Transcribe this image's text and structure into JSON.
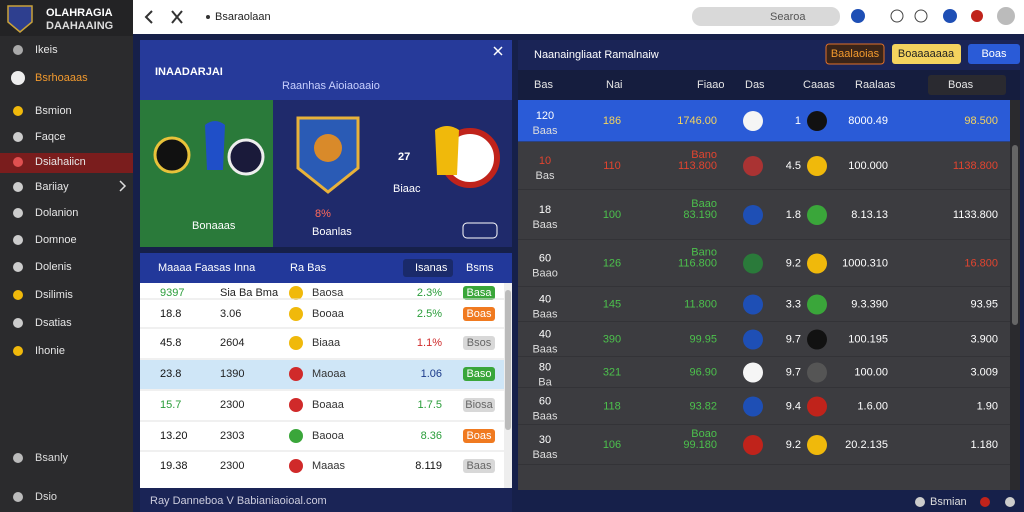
{
  "sidebar": {
    "brand": [
      "OLAHRAGIA",
      "DAAHAAING"
    ],
    "menu": [
      "Ikeis",
      "Bsrhoaaas",
      "Bsmion",
      "Faqce",
      "Dsiahaiicn",
      "Bariiay",
      "Dolanion",
      "Domnoe",
      "Dolenis",
      "Dsilimis",
      "Dsatias",
      "Ihonie"
    ],
    "footer": [
      "Bsanly",
      "Dsio"
    ]
  },
  "topbar": {
    "title": "Bsaraolaan",
    "search": "Searoa"
  },
  "hero": {
    "title": "INAADARJAI",
    "subtitle": "Raanhas Aioiaoaaio",
    "score": "27",
    "percent": "8%",
    "caption": "Boanlas",
    "left_label": "Bonaaas",
    "right_label": "Biaac"
  },
  "odds_table": {
    "columns": [
      "Maaaa Faasas Inna",
      "Ra Bas",
      "Isanas",
      "Bsms"
    ],
    "rows": [
      {
        "value": "9397",
        "odds": "Sia Ba Bma",
        "team": "Baosa",
        "change": "2.3%",
        "action": "Basa",
        "value_color": "#2a9d3a",
        "change_color": "#2a9d3a",
        "action_color": "#3aa63a"
      },
      {
        "value": "18.8",
        "odds": "3.06",
        "team": "Booaa",
        "change": "2.5%",
        "action": "Boas",
        "value_color": "#111111",
        "change_color": "#2a9d3a",
        "action_color": "#f07a20"
      },
      {
        "value": "45.8",
        "odds": "2604",
        "team": "Biaaa",
        "change": "1.1%",
        "action": "Bsos",
        "value_color": "#111111",
        "change_color": "#d02a2a",
        "action_color": "#d8d8d8"
      },
      {
        "value": "23.8",
        "odds": "1390",
        "team": "Maoaa",
        "change": "1.06",
        "action": "Baso",
        "value_color": "#111111",
        "change_color": "#1a3a8a",
        "action_color": "#3aa63a"
      },
      {
        "value": "15.7",
        "odds": "2300",
        "team": "Boaaa",
        "change": "1.7.5",
        "action": "Biosa",
        "value_color": "#2a9d3a",
        "change_color": "#2a9d3a",
        "action_color": "#d8d8d8"
      },
      {
        "value": "13.20",
        "odds": "2303",
        "team": "Baooa",
        "change": "8.36",
        "action": "Boas",
        "value_color": "#111111",
        "change_color": "#2a9d3a",
        "action_color": "#f07a20"
      },
      {
        "value": "19.38",
        "odds": "2300",
        "team": "Maaas",
        "change": "8.119",
        "action": "Baas",
        "value_color": "#111111",
        "change_color": "#111111",
        "action_color": "#d8d8d8"
      }
    ],
    "footer": "Ray  Danneboa V Babianiaoioal.com",
    "footer_right": "Bsmian"
  },
  "rankings": {
    "title": "Naanaingliaat Ramalnaiw",
    "buttons": [
      "Baalaoias",
      "Boaaaaaaa",
      "Boas"
    ],
    "columns": [
      "Bas",
      "Nai",
      "Fiaao",
      "Das",
      "Caaas",
      "Raalaas",
      "Boas"
    ],
    "rows": [
      {
        "rank": "120",
        "rank_sub": "Baas",
        "nai": "186",
        "fiaao": "1746.00",
        "num": "1",
        "raalaas": "8000.49",
        "boas": "98.500",
        "color": "#f4d35e",
        "boas_color": "#f4d35e"
      },
      {
        "rank": "10",
        "rank_sub": "Bas",
        "nai": "110",
        "fiaao": "113.800",
        "fiaao_sub": "Bano",
        "num": "4.5",
        "raalaas": "100.000",
        "boas": "1138.800",
        "color": "#e2442f",
        "boas_color": "#e2442f"
      },
      {
        "rank": "18",
        "rank_sub": "Baas",
        "nai": "100",
        "fiaao": "83.190",
        "fiaao_sub": "Baao",
        "num": "1.8",
        "raalaas": "8.13.13",
        "boas": "1133.800",
        "color": "#4cc04c",
        "boas_color": "#ffffff"
      },
      {
        "rank": "60",
        "rank_sub": "Baao",
        "nai": "126",
        "fiaao": "116.800",
        "fiaao_sub": "Bano",
        "num": "9.2",
        "raalaas": "1000.310",
        "boas": "16.800",
        "color": "#4cc04c",
        "boas_color": "#e2442f"
      },
      {
        "rank": "40",
        "rank_sub": "Baas",
        "nai": "145",
        "fiaao": "11.800",
        "num": "3.3",
        "raalaas": "9.3.390",
        "boas": "93.95",
        "color": "#4cc04c",
        "boas_color": "#ffffff"
      },
      {
        "rank": "40",
        "rank_sub": "Baas",
        "nai": "390",
        "fiaao": "99.95",
        "num": "9.7",
        "raalaas": "100.195",
        "boas": "3.900",
        "color": "#4cc04c",
        "boas_color": "#ffffff"
      },
      {
        "rank": "80",
        "rank_sub": "Ba",
        "nai": "321",
        "fiaao": "96.90",
        "num": "9.7",
        "raalaas": "100.00",
        "boas": "3.009",
        "color": "#4cc04c",
        "boas_color": "#ffffff"
      },
      {
        "rank": "60",
        "rank_sub": "Baas",
        "nai": "118",
        "fiaao": "93.82",
        "num": "9.4",
        "raalaas": "1.6.00",
        "boas": "1.90",
        "color": "#4cc04c",
        "boas_color": "#ffffff"
      },
      {
        "rank": "30",
        "rank_sub": "Baas",
        "nai": "106",
        "fiaao": "99.180",
        "fiaao_sub": "Boao",
        "num": "9.2",
        "raalaas": "20.2.135",
        "boas": "1.180",
        "color": "#4cc04c",
        "boas_color": "#ffffff"
      }
    ]
  }
}
